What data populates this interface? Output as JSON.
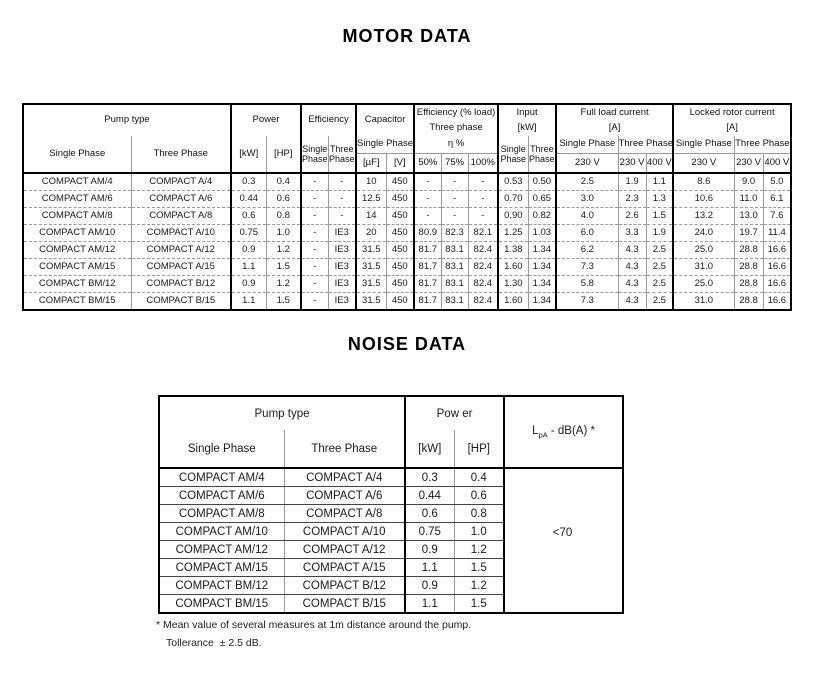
{
  "titles": {
    "motor": "MOTOR DATA",
    "noise": "NOISE DATA"
  },
  "motor_table": {
    "header": {
      "pump_type": "Pump type",
      "single_phase": "Single Phase",
      "three_phase": "Three Phase",
      "power": "Power",
      "kw": "[kW]",
      "hp": "[HP]",
      "efficiency": "Efficiency",
      "capacitor": "Capacitor",
      "uf": "[µF]",
      "v": "[V]",
      "efficiency_load": "Efficiency (% load)",
      "three_phase_lc": "Three phase",
      "eta": "η %",
      "p50": "50%",
      "p75": "75%",
      "p100": "100%",
      "input": "Input",
      "amp": "[A]",
      "full_load_current": "Full load current",
      "locked_rotor_current": "Locked rotor current",
      "v230": "230 V",
      "v400": "400 V"
    },
    "rows": [
      [
        "COMPACT AM/4",
        "COMPACT A/4",
        "0.3",
        "0.4",
        "-",
        "-",
        "10",
        "450",
        "-",
        "-",
        "-",
        "0.53",
        "0.50",
        "2.5",
        "1.9",
        "1.1",
        "8.6",
        "9.0",
        "5.0"
      ],
      [
        "COMPACT AM/6",
        "COMPACT A/6",
        "0.44",
        "0.6",
        "-",
        "-",
        "12.5",
        "450",
        "-",
        "-",
        "-",
        "0.70",
        "0.65",
        "3.0",
        "2.3",
        "1.3",
        "10.6",
        "11.0",
        "6.1"
      ],
      [
        "COMPACT AM/8",
        "COMPACT A/8",
        "0.6",
        "0.8",
        "-",
        "-",
        "14",
        "450",
        "-",
        "-",
        "-",
        "0.90",
        "0.82",
        "4.0",
        "2.6",
        "1.5",
        "13.2",
        "13.0",
        "7.6"
      ],
      [
        "COMPACT AM/10",
        "COMPACT A/10",
        "0.75",
        "1.0",
        "-",
        "IE3",
        "20",
        "450",
        "80.9",
        "82.3",
        "82.1",
        "1.25",
        "1.03",
        "6.0",
        "3.3",
        "1.9",
        "24.0",
        "19.7",
        "11.4"
      ],
      [
        "COMPACT AM/12",
        "COMPACT A/12",
        "0.9",
        "1.2",
        "-",
        "IE3",
        "31.5",
        "450",
        "81.7",
        "83.1",
        "82.4",
        "1.38",
        "1.34",
        "6.2",
        "4.3",
        "2.5",
        "25.0",
        "28.8",
        "16.6"
      ],
      [
        "COMPACT AM/15",
        "COMPACT A/15",
        "1.1",
        "1.5",
        "-",
        "IE3",
        "31.5",
        "450",
        "81.7",
        "83.1",
        "82.4",
        "1.60",
        "1.34",
        "7.3",
        "4.3",
        "2.5",
        "31.0",
        "28.8",
        "16.6"
      ],
      [
        "COMPACT BM/12",
        "COMPACT B/12",
        "0.9",
        "1.2",
        "-",
        "IE3",
        "31.5",
        "450",
        "81.7",
        "83.1",
        "82.4",
        "1.30",
        "1.34",
        "5.8",
        "4.3",
        "2.5",
        "25.0",
        "28.8",
        "16.6"
      ],
      [
        "COMPACT BM/15",
        "COMPACT B/15",
        "1.1",
        "1.5",
        "-",
        "IE3",
        "31.5",
        "450",
        "81.7",
        "83.1",
        "82.4",
        "1.60",
        "1.34",
        "7.3",
        "4.3",
        "2.5",
        "31.0",
        "28.8",
        "16.6"
      ]
    ]
  },
  "noise_table": {
    "header": {
      "pump_type": "Pump type",
      "single_phase": "Single Phase",
      "three_phase": "Three Phase",
      "power": "Pow er",
      "kw": "[kW]",
      "hp": "[HP]",
      "lpa_l": "L",
      "lpa_sub": "pA",
      "lpa_rest": " - dB(A) *"
    },
    "rows": [
      [
        "COMPACT AM/4",
        "COMPACT A/4",
        "0.3",
        "0.4"
      ],
      [
        "COMPACT AM/6",
        "COMPACT A/6",
        "0.44",
        "0.6"
      ],
      [
        "COMPACT AM/8",
        "COMPACT A/8",
        "0.6",
        "0.8"
      ],
      [
        "COMPACT AM/10",
        "COMPACT A/10",
        "0.75",
        "1.0"
      ],
      [
        "COMPACT AM/12",
        "COMPACT A/12",
        "0.9",
        "1.2"
      ],
      [
        "COMPACT AM/15",
        "COMPACT A/15",
        "1.1",
        "1.5"
      ],
      [
        "COMPACT BM/12",
        "COMPACT B/12",
        "0.9",
        "1.2"
      ],
      [
        "COMPACT BM/15",
        "COMPACT B/15",
        "1.1",
        "1.5"
      ]
    ],
    "lpa_value": "<70"
  },
  "footnote": {
    "line1": "* Mean value of several measures at 1m distance around the pump.",
    "line2": "Tollerance  ± 2.5 dB."
  }
}
